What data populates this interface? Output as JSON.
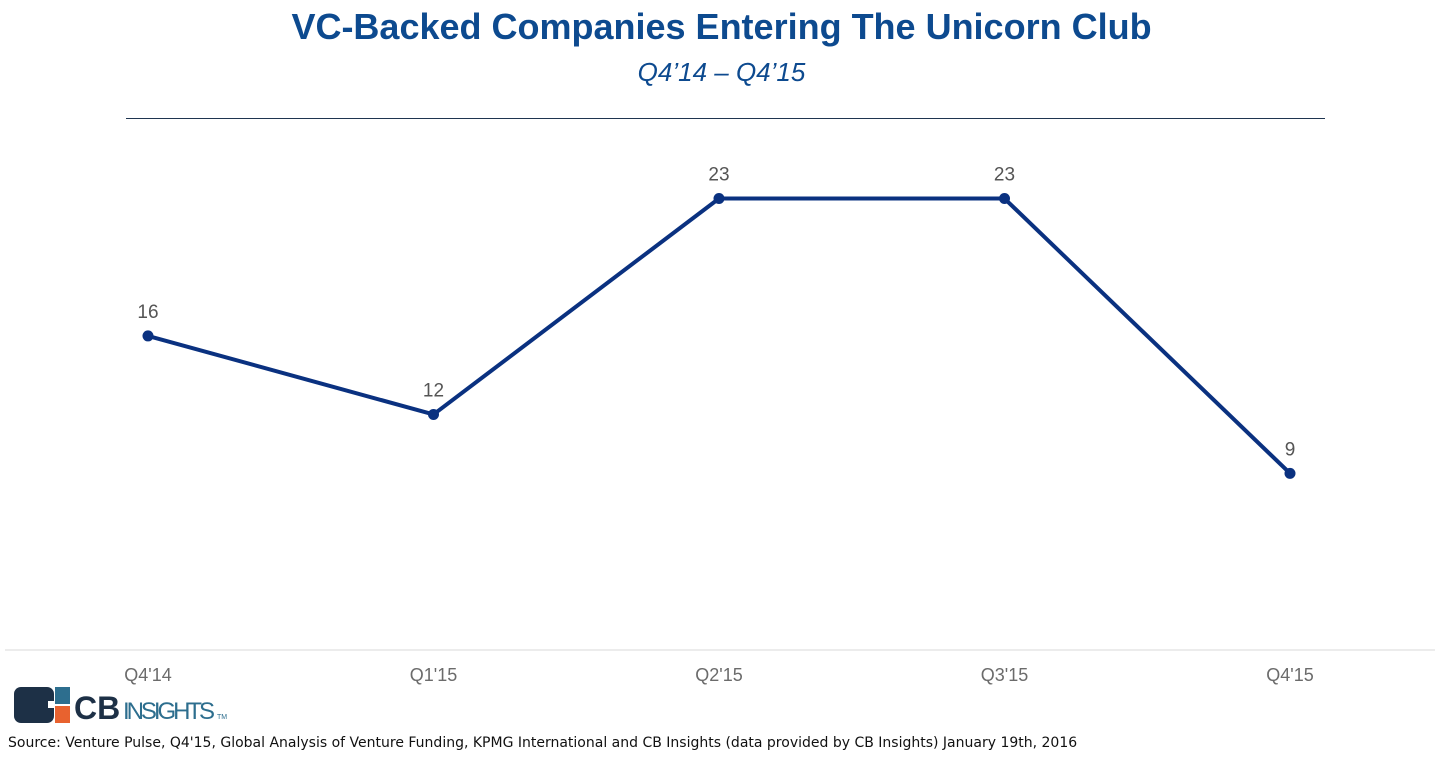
{
  "chart_data": {
    "type": "line",
    "title": "VC-Backed Companies Entering The Unicorn Club",
    "subtitle": "Q4’14 – Q4’15",
    "categories": [
      "Q4'14",
      "Q1'15",
      "Q2'15",
      "Q3'15",
      "Q4'15"
    ],
    "values": [
      16,
      12,
      23,
      23,
      9
    ],
    "xlabel": "",
    "ylabel": "",
    "ylim": [
      0,
      27
    ],
    "grid": false,
    "line_color": "#0a3180",
    "data_labels": true
  },
  "footer": {
    "logo_text": "CB INSIGHTS",
    "source": "Source: Venture Pulse, Q4'15, Global Analysis of Venture Funding, KPMG International and CB Insights (data provided by CB Insights) January 19th, 2016"
  }
}
